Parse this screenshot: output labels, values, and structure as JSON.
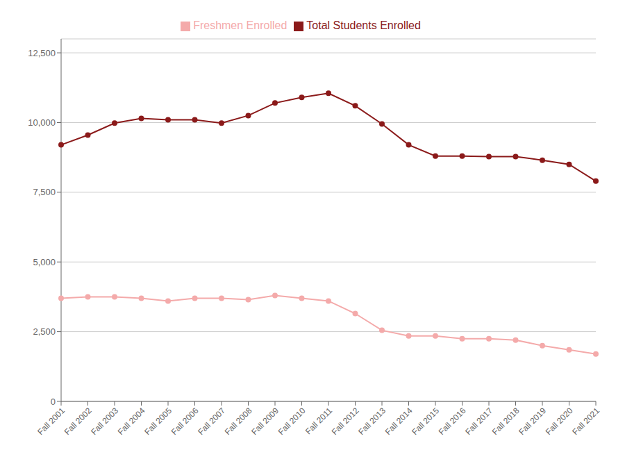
{
  "chart_data": {
    "type": "line",
    "categories": [
      "Fall 2001",
      "Fall 2002",
      "Fall 2003",
      "Fall 2004",
      "Fall 2005",
      "Fall 2006",
      "Fall 2007",
      "Fall 2008",
      "Fall 2009",
      "Fall 2010",
      "Fall 2011",
      "Fall 2012",
      "Fall 2013",
      "Fall 2014",
      "Fall 2015",
      "Fall 2016",
      "Fall 2017",
      "Fall 2018",
      "Fall 2019",
      "Fall 2020",
      "Fall 2021"
    ],
    "series": [
      {
        "name": "Total Students Enrolled",
        "color": "#8B1A1A",
        "marker": "circle",
        "values": [
          9200,
          9550,
          9980,
          10150,
          10100,
          10100,
          9980,
          10250,
          10700,
          10900,
          11050,
          10600,
          9950,
          9200,
          8800,
          8800,
          8780,
          8780,
          8650,
          8500,
          7900
        ]
      },
      {
        "name": "Freshmen Enrolled",
        "color": "#F4AAAA",
        "marker": "circle",
        "values": [
          3700,
          3750,
          3750,
          3700,
          3600,
          3700,
          3700,
          3650,
          3800,
          3700,
          3600,
          3150,
          2550,
          2350,
          2350,
          2250,
          2250,
          2200,
          2000,
          1850,
          1700
        ]
      }
    ],
    "ylim": [
      0,
      13000
    ],
    "yticks": [
      0,
      {
        "value": 2500,
        "label": "2,500"
      },
      {
        "value": 5000,
        "label": "5,000"
      },
      {
        "value": 7500,
        "label": "7,500"
      },
      {
        "value": 10000,
        "label": "10,000"
      },
      {
        "value": 12500,
        "label": "12,500"
      }
    ],
    "grid": true,
    "legend": "top"
  }
}
